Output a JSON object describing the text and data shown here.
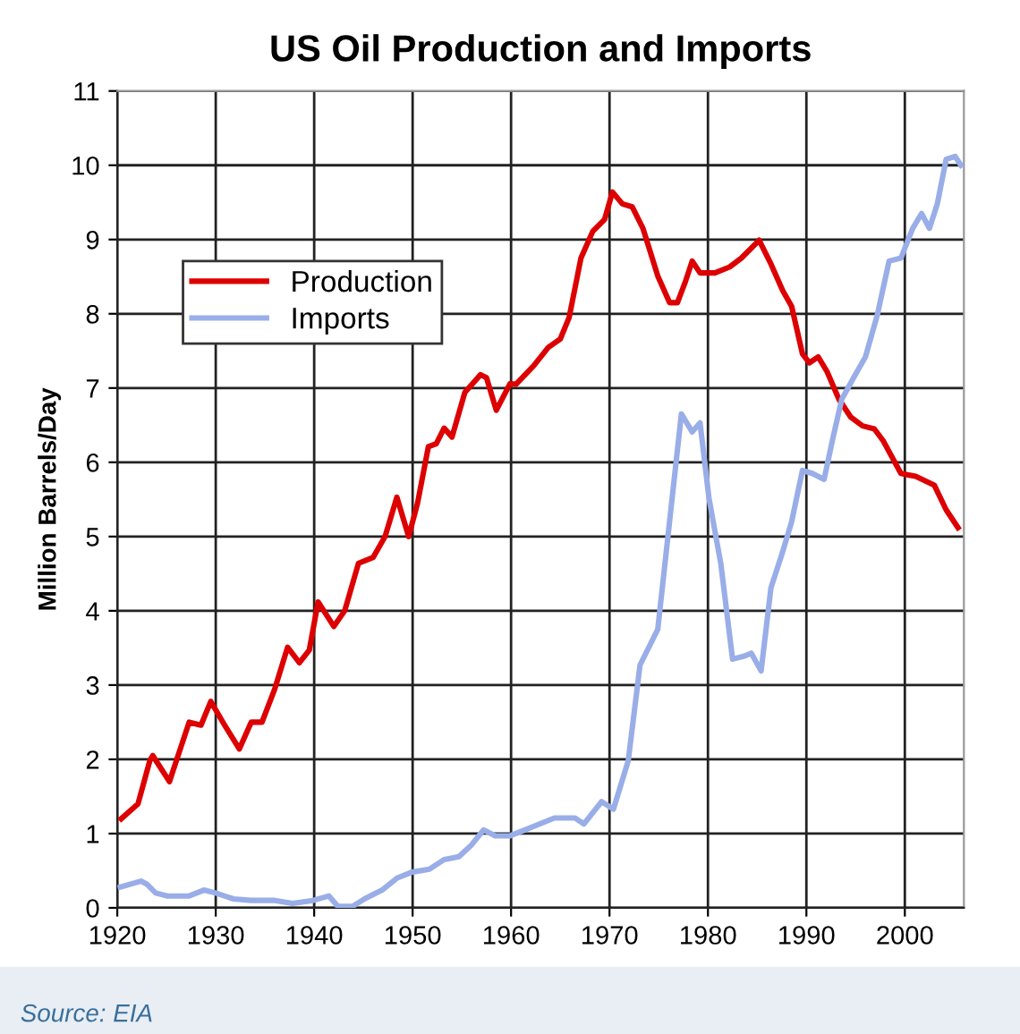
{
  "chart_data": {
    "type": "line",
    "title": "US Oil Production and Imports",
    "ylabel": "Million Barrels/Day",
    "xlim": [
      1920,
      2006
    ],
    "xticks": [
      1920,
      1930,
      1940,
      1950,
      1960,
      1970,
      1980,
      1990,
      2000
    ],
    "ylim": [
      0,
      11
    ],
    "yticks": [
      0,
      1,
      2,
      3,
      4,
      5,
      6,
      7,
      8,
      9,
      10,
      11
    ],
    "grid": true,
    "legend": "top left",
    "marker": "none",
    "line_style": "solid",
    "annotations": [
      "Source: EIA"
    ],
    "series": [
      {
        "name": "Production",
        "color": "#dd0000",
        "x": [
          1920.4,
          1922.1,
          1923.3,
          1923.6,
          1925.3,
          1927.3,
          1928.5,
          1929.5,
          1930.9,
          1932.4,
          1933.6,
          1934.7,
          1936.0,
          1937.3,
          1938.5,
          1939.5,
          1940.4,
          1942.0,
          1943.1,
          1944.5,
          1946.0,
          1947.2,
          1948.4,
          1949.6,
          1950.5,
          1951.6,
          1952.4,
          1953.2,
          1954.0,
          1955.3,
          1956.9,
          1957.5,
          1958.5,
          1959.9,
          1960.5,
          1962.3,
          1963.8,
          1965.0,
          1965.9,
          1967.1,
          1968.3,
          1969.5,
          1970.3,
          1971.3,
          1972.3,
          1973.4,
          1974.9,
          1976.1,
          1976.9,
          1977.7,
          1978.4,
          1979.2,
          1980.7,
          1982.2,
          1983.4,
          1985.2,
          1986.4,
          1987.6,
          1988.5,
          1989.6,
          1990.3,
          1991.2,
          1992.1,
          1993.3,
          1994.5,
          1995.7,
          1996.9,
          1997.8,
          1999.6,
          2001.1,
          2003.0,
          2004.2,
          2005.4
        ],
        "values": [
          1.2,
          1.4,
          1.98,
          2.05,
          1.7,
          2.5,
          2.46,
          2.78,
          2.46,
          2.14,
          2.5,
          2.5,
          2.95,
          3.51,
          3.3,
          3.47,
          4.12,
          3.79,
          4.0,
          4.64,
          4.72,
          5.0,
          5.53,
          5.0,
          5.45,
          6.21,
          6.25,
          6.46,
          6.34,
          6.94,
          7.18,
          7.14,
          6.7,
          7.06,
          7.05,
          7.3,
          7.55,
          7.66,
          7.95,
          8.75,
          9.11,
          9.27,
          9.64,
          9.48,
          9.44,
          9.15,
          8.51,
          8.15,
          8.15,
          8.43,
          8.71,
          8.55,
          8.55,
          8.63,
          8.75,
          8.99,
          8.67,
          8.31,
          8.1,
          7.46,
          7.34,
          7.42,
          7.22,
          6.85,
          6.61,
          6.49,
          6.45,
          6.29,
          5.85,
          5.81,
          5.69,
          5.36,
          5.12
        ]
      },
      {
        "name": "Imports",
        "color": "#99aee8",
        "x": [
          1920.3,
          1922.4,
          1923.0,
          1923.9,
          1925.1,
          1927.3,
          1928.8,
          1930.0,
          1931.8,
          1933.6,
          1936.0,
          1937.8,
          1939.9,
          1941.5,
          1942.4,
          1943.9,
          1945.1,
          1946.9,
          1948.4,
          1949.9,
          1951.7,
          1953.2,
          1954.7,
          1956.0,
          1957.2,
          1958.4,
          1959.9,
          1961.4,
          1964.4,
          1966.5,
          1967.4,
          1969.2,
          1970.4,
          1971.9,
          1973.1,
          1974.9,
          1976.1,
          1977.3,
          1978.4,
          1979.2,
          1980.1,
          1981.3,
          1982.5,
          1983.7,
          1984.4,
          1985.4,
          1986.4,
          1987.6,
          1988.5,
          1989.6,
          1990.6,
          1991.8,
          1992.7,
          1993.6,
          1994.8,
          1996.0,
          1997.2,
          1998.4,
          1999.6,
          2000.8,
          2001.7,
          2002.5,
          2003.3,
          2004.2,
          2005.1,
          2005.7
        ],
        "values": [
          0.28,
          0.36,
          0.32,
          0.2,
          0.16,
          0.16,
          0.24,
          0.2,
          0.12,
          0.1,
          0.1,
          0.06,
          0.1,
          0.16,
          0.02,
          0.02,
          0.12,
          0.24,
          0.4,
          0.48,
          0.52,
          0.65,
          0.69,
          0.85,
          1.05,
          0.97,
          0.97,
          1.05,
          1.21,
          1.21,
          1.13,
          1.43,
          1.33,
          1.98,
          3.27,
          3.75,
          5.2,
          6.65,
          6.41,
          6.53,
          5.52,
          4.64,
          3.35,
          3.39,
          3.43,
          3.19,
          4.31,
          4.8,
          5.2,
          5.89,
          5.85,
          5.77,
          6.33,
          6.85,
          7.14,
          7.42,
          7.98,
          8.71,
          8.75,
          9.15,
          9.35,
          9.15,
          9.48,
          10.08,
          10.12,
          10.0
        ]
      }
    ]
  }
}
